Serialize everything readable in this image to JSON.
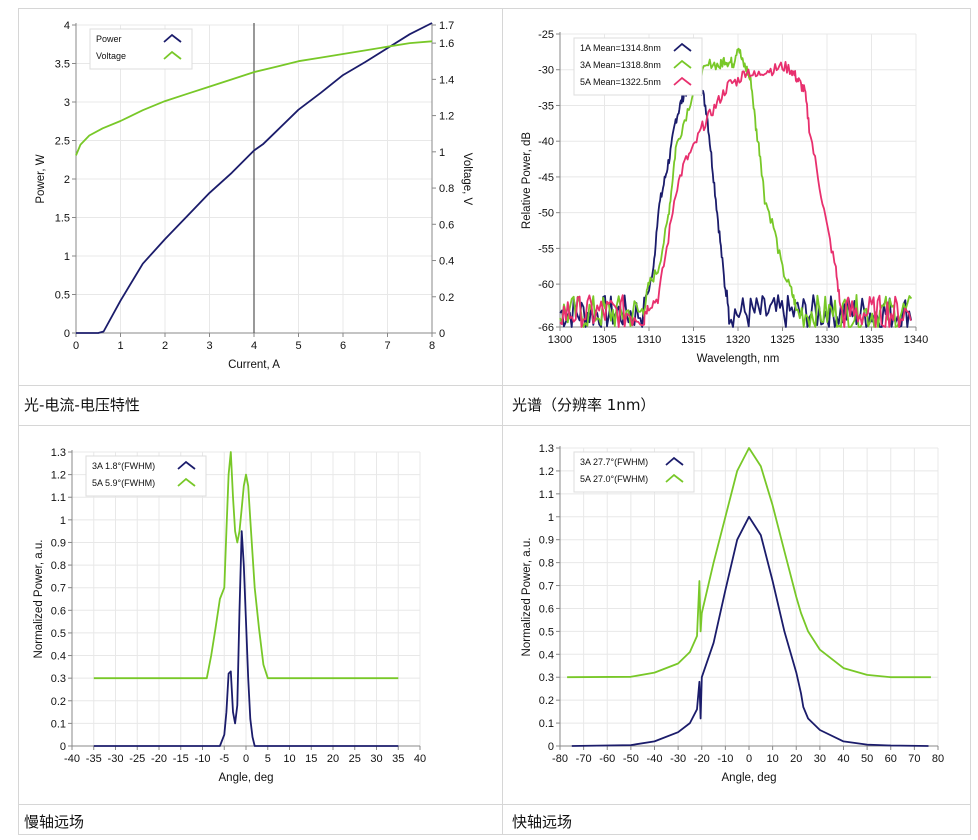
{
  "captions": {
    "liv": "光-电流-电压特性",
    "spectrum": "光谱（分辨率 1nm）",
    "slow": "慢轴远场",
    "fast": "快轴远场"
  },
  "colors": {
    "navy": "#1b1c6b",
    "green": "#78c828",
    "pink": "#e8306e",
    "grid": "#e8e8e8",
    "axis": "#888888"
  },
  "chart_data": [
    {
      "id": "liv",
      "type": "line",
      "xlabel": "Current, A",
      "ylabel": "Power, W",
      "y2label": "Voltage, V",
      "xlim": [
        0,
        8
      ],
      "ylim": [
        0,
        4
      ],
      "y2lim": [
        0,
        1.7
      ],
      "xticks": [
        0,
        1,
        2,
        3,
        4,
        5,
        6,
        7,
        8
      ],
      "yticks": [
        0,
        0.5,
        1,
        1.5,
        2,
        2.5,
        3,
        3.5,
        4
      ],
      "y2ticks": [
        0,
        0.2,
        0.4,
        0.6,
        0.8,
        1,
        1.2,
        1.4,
        1.6,
        1.7
      ],
      "cursor_x": 4,
      "legend": [
        "Power",
        "Voltage"
      ],
      "series": [
        {
          "name": "Power",
          "axis": "left",
          "color": "navy",
          "x": [
            0,
            0.5,
            0.62,
            1,
            1.5,
            2,
            2.5,
            3,
            3.5,
            4,
            4.2,
            4.5,
            5,
            5.5,
            6,
            6.5,
            7,
            7.5,
            8
          ],
          "y": [
            0,
            0,
            0.02,
            0.42,
            0.9,
            1.22,
            1.52,
            1.82,
            2.08,
            2.37,
            2.45,
            2.62,
            2.9,
            3.12,
            3.35,
            3.52,
            3.7,
            3.88,
            4.03
          ]
        },
        {
          "name": "Voltage",
          "axis": "right",
          "color": "green",
          "x": [
            0,
            0.1,
            0.3,
            0.6,
            1,
            1.5,
            2,
            2.5,
            3,
            3.5,
            4,
            4.5,
            5,
            5.5,
            6,
            6.5,
            7,
            7.5,
            8
          ],
          "y": [
            0.98,
            1.04,
            1.09,
            1.13,
            1.17,
            1.23,
            1.28,
            1.32,
            1.36,
            1.4,
            1.44,
            1.47,
            1.5,
            1.52,
            1.54,
            1.56,
            1.58,
            1.6,
            1.61
          ]
        }
      ]
    },
    {
      "id": "spectrum",
      "type": "line",
      "xlabel": "Wavelength, nm",
      "ylabel": "Relative Power, dB",
      "xlim": [
        1300,
        1340
      ],
      "ylim": [
        -66,
        -25
      ],
      "xticks": [
        1300,
        1305,
        1310,
        1315,
        1320,
        1325,
        1330,
        1335,
        1340
      ],
      "yticks": [
        -25,
        -30,
        -35,
        -40,
        -45,
        -50,
        -55,
        -60,
        -66
      ],
      "legend": [
        "1A Mean=1314.8nm",
        "3A Mean=1318.8nm",
        "5A Mean=1322.5nm"
      ],
      "series": [
        {
          "name": "1A Mean=1314.8nm",
          "color": "navy",
          "noise_floor": -63,
          "x": [
            1309.5,
            1310.5,
            1311,
            1311.5,
            1312,
            1312.5,
            1313,
            1313.5,
            1314,
            1314.5,
            1315,
            1315.5,
            1316,
            1316.5,
            1317,
            1317.5,
            1318,
            1318.5,
            1319
          ],
          "y": [
            -63,
            -58,
            -50,
            -47,
            -44,
            -41,
            -37,
            -35,
            -33,
            -33,
            -32,
            -31.5,
            -33,
            -36,
            -42,
            -48,
            -54,
            -60,
            -63
          ]
        },
        {
          "name": "3A Mean=1318.8nm",
          "color": "green",
          "noise_floor": -63,
          "x": [
            1309.5,
            1310,
            1311,
            1312,
            1312.5,
            1313,
            1314,
            1315,
            1316,
            1317,
            1318,
            1318.5,
            1319,
            1319.5,
            1320,
            1320.5,
            1321,
            1321.5,
            1322,
            1322.5,
            1323,
            1324,
            1325,
            1326,
            1326.5
          ],
          "y": [
            -63,
            -60,
            -58,
            -52,
            -47,
            -41,
            -37,
            -33,
            -30.5,
            -29,
            -29.5,
            -28.5,
            -29,
            -29,
            -26.5,
            -29,
            -30,
            -32,
            -38,
            -42,
            -48,
            -52,
            -58,
            -61,
            -63
          ]
        },
        {
          "name": "5A Mean=1322.5nm",
          "color": "pink",
          "noise_floor": -63,
          "x": [
            1309.5,
            1310,
            1311,
            1312,
            1313,
            1314,
            1315,
            1316,
            1317,
            1318,
            1319,
            1320,
            1321,
            1322,
            1323,
            1324,
            1325,
            1326,
            1326.5,
            1327,
            1327.5,
            1328,
            1329,
            1330,
            1331,
            1331.5
          ],
          "y": [
            -64,
            -63,
            -62,
            -55,
            -47,
            -43,
            -41,
            -38,
            -36,
            -34,
            -32,
            -31.5,
            -30,
            -31,
            -30,
            -30,
            -29.5,
            -30,
            -31,
            -32,
            -33,
            -38,
            -45,
            -52,
            -58,
            -63
          ]
        }
      ]
    },
    {
      "id": "slow",
      "type": "line",
      "xlabel": "Angle, deg",
      "ylabel": "Normalized Power, a.u.",
      "xlim": [
        -40,
        40
      ],
      "ylim": [
        0,
        1.3
      ],
      "xticks": [
        -40,
        -35,
        -30,
        -25,
        -20,
        -15,
        -10,
        -5,
        0,
        5,
        10,
        15,
        20,
        25,
        30,
        35,
        40
      ],
      "yticks": [
        0,
        0.1,
        0.2,
        0.3,
        0.4,
        0.5,
        0.6,
        0.7,
        0.8,
        0.9,
        1,
        1.1,
        1.2,
        1.3
      ],
      "legend": [
        "3A 1.8°(FWHM)",
        "5A 5.9°(FWHM)"
      ],
      "series": [
        {
          "name": "3A 1.8°(FWHM)",
          "color": "navy",
          "x": [
            -35,
            -6,
            -5,
            -4.5,
            -4,
            -3.5,
            -3,
            -2.5,
            -2,
            -1.5,
            -1,
            -0.5,
            0,
            0.5,
            1,
            1.5,
            2,
            35
          ],
          "y": [
            0,
            0,
            0.05,
            0.15,
            0.32,
            0.33,
            0.15,
            0.1,
            0.18,
            0.6,
            0.95,
            0.8,
            0.55,
            0.3,
            0.12,
            0.04,
            0,
            0
          ]
        },
        {
          "name": "5A 5.9°(FWHM)",
          "color": "green",
          "x": [
            -35,
            -9,
            -8,
            -7,
            -6,
            -5,
            -4.5,
            -4,
            -3.5,
            -3,
            -2.5,
            -2,
            -1.5,
            -1,
            -0.5,
            0,
            0.5,
            1,
            1.5,
            2,
            3,
            4,
            5,
            35
          ],
          "y": [
            0.3,
            0.3,
            0.4,
            0.52,
            0.65,
            0.7,
            0.95,
            1.2,
            1.3,
            1.1,
            0.95,
            0.9,
            0.95,
            1.05,
            1.15,
            1.2,
            1.15,
            1.0,
            0.85,
            0.7,
            0.52,
            0.36,
            0.3,
            0.3
          ]
        }
      ]
    },
    {
      "id": "fast",
      "type": "line",
      "xlabel": "Angle, deg",
      "ylabel": "Normalized Power, a.u.",
      "xlim": [
        -80,
        80
      ],
      "ylim": [
        0,
        1.3
      ],
      "xticks": [
        -80,
        -70,
        -60,
        -50,
        -40,
        -30,
        -20,
        -10,
        0,
        10,
        20,
        30,
        40,
        50,
        60,
        70,
        80
      ],
      "yticks": [
        0,
        0.1,
        0.2,
        0.3,
        0.4,
        0.5,
        0.6,
        0.7,
        0.8,
        0.9,
        1,
        1.1,
        1.2,
        1.3
      ],
      "legend": [
        "3A 27.7°(FWHM)",
        "5A 27.0°(FWHM)"
      ],
      "series": [
        {
          "name": "3A 27.7°(FWHM)",
          "color": "navy",
          "x": [
            -75,
            -50,
            -40,
            -30,
            -25,
            -22,
            -21,
            -20.5,
            -20,
            -15,
            -10,
            -5,
            0,
            5,
            10,
            15,
            20,
            22,
            23,
            25,
            30,
            40,
            50,
            60,
            76
          ],
          "y": [
            0,
            0.004,
            0.02,
            0.06,
            0.1,
            0.16,
            0.28,
            0.12,
            0.3,
            0.45,
            0.68,
            0.9,
            1.0,
            0.92,
            0.72,
            0.5,
            0.32,
            0.23,
            0.17,
            0.12,
            0.07,
            0.02,
            0.006,
            0.002,
            0
          ]
        },
        {
          "name": "5A 27.0°(FWHM)",
          "color": "green",
          "x": [
            -77,
            -50,
            -40,
            -30,
            -25,
            -22,
            -21,
            -20.5,
            -20,
            -15,
            -10,
            -5,
            0,
            5,
            10,
            15,
            20,
            22,
            25,
            30,
            40,
            50,
            60,
            77
          ],
          "y": [
            0.3,
            0.302,
            0.32,
            0.36,
            0.41,
            0.48,
            0.72,
            0.5,
            0.58,
            0.8,
            1.0,
            1.2,
            1.3,
            1.22,
            1.05,
            0.85,
            0.65,
            0.58,
            0.5,
            0.42,
            0.34,
            0.31,
            0.3,
            0.3
          ]
        }
      ]
    }
  ]
}
